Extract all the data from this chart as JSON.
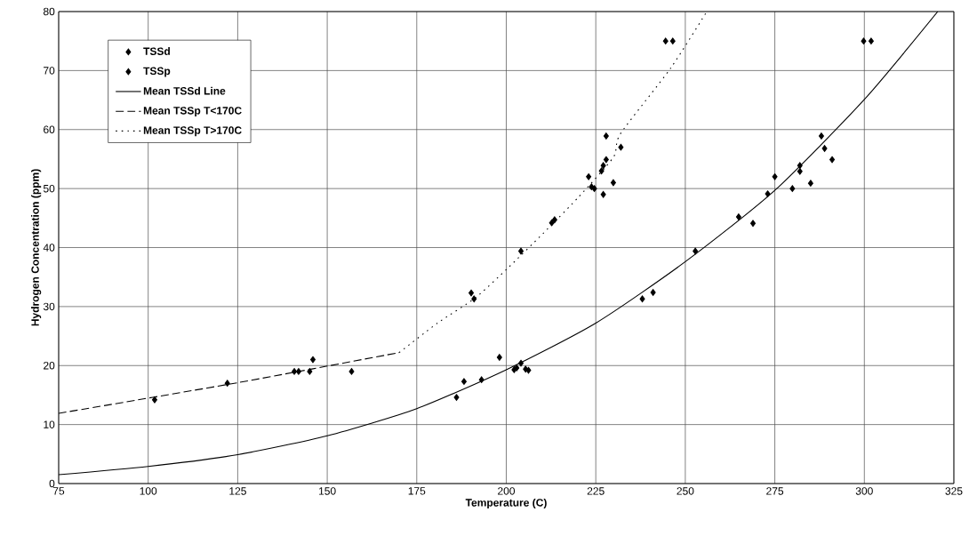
{
  "chart_data": {
    "type": "scatter",
    "xlabel": "Temperature (C)",
    "ylabel": "Hydrogen Concentration (ppm)",
    "xlim": [
      75,
      325
    ],
    "ylim": [
      0,
      80
    ],
    "xticks": [
      75,
      100,
      125,
      150,
      175,
      200,
      225,
      250,
      275,
      300,
      325
    ],
    "yticks": [
      0,
      10,
      20,
      30,
      40,
      50,
      60,
      70,
      80
    ],
    "grid": true,
    "legend": "top left",
    "series": [
      {
        "name": "TSSd",
        "marker": "diamond",
        "color": "#000000",
        "x": [
          186.1,
          188.2,
          193.1,
          198.1,
          202.2,
          202.9,
          238.0,
          241.0,
          252.8,
          264.9,
          268.9,
          273.0,
          275.0,
          279.9,
          282.0,
          282.0,
          285.0,
          288.0,
          288.9,
          291.0,
          299.8,
          301.9
        ],
        "values": [
          14.6,
          17.3,
          17.6,
          21.4,
          19.3,
          19.6,
          31.3,
          32.4,
          39.4,
          45.2,
          44.1,
          49.1,
          52.0,
          50.0,
          53.9,
          52.9,
          50.9,
          58.9,
          56.8,
          54.9,
          75,
          75
        ]
      },
      {
        "name": "TSSp",
        "marker": "diamond",
        "color": "#000000",
        "x": [
          101.8,
          122.1,
          140.8,
          142.0,
          145.1,
          146.0,
          156.8,
          190.2,
          191.0,
          204.1,
          204.1,
          205.4,
          206.2,
          212.7,
          213.5,
          223.0,
          223.8,
          224.6,
          226.6,
          227.1,
          227.1,
          227.9,
          227.9,
          229.9,
          232.0,
          244.5,
          246.5
        ],
        "values": [
          14.2,
          17.0,
          19.0,
          19.0,
          19.0,
          21.0,
          19.0,
          32.3,
          31.3,
          39.4,
          20.4,
          19.4,
          19.2,
          44.2,
          44.7,
          52.0,
          50.3,
          50.0,
          53.0,
          53.9,
          49.0,
          54.9,
          58.9,
          51.0,
          57.0,
          75,
          75
        ]
      },
      {
        "name": "Mean TSSd Line",
        "type": "line",
        "line_style": "solid",
        "marker": "none",
        "color": "#000000",
        "x": [
          75,
          100,
          125,
          150,
          175,
          200,
          225,
          250,
          275,
          300,
          320.5
        ],
        "values": [
          1.5,
          2.9,
          4.9,
          8.1,
          12.7,
          19.3,
          27.2,
          37.6,
          49.7,
          65.1,
          80
        ]
      },
      {
        "name": "Mean TSSp T<170C",
        "type": "line",
        "line_style": "dashed",
        "marker": "none",
        "color": "#000000",
        "x": [
          75,
          125,
          170.1
        ],
        "values": [
          11.9,
          17.1,
          22.2
        ]
      },
      {
        "name": "Mean TSSp T>170C",
        "type": "line",
        "line_style": "dotted",
        "marker": "none",
        "color": "#000000",
        "x": [
          170.1,
          180.8,
          191.4,
          200.4,
          210.3,
          220.1,
          229.9,
          231.9,
          245.9,
          256
        ],
        "values": [
          22.2,
          27.2,
          31.5,
          36.5,
          42.4,
          48.5,
          55.3,
          59.3,
          70.4,
          80
        ]
      }
    ]
  }
}
